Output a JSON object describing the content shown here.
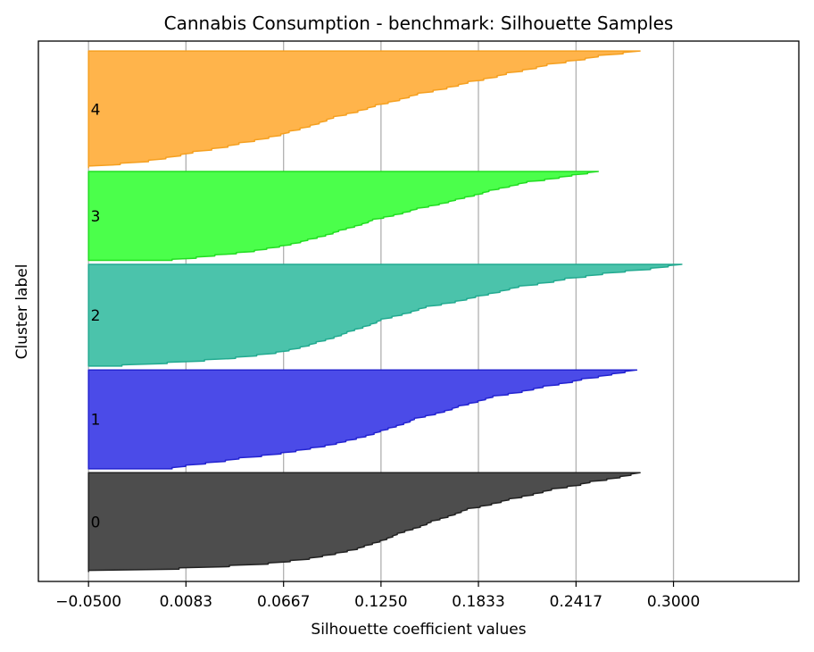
{
  "chart_data": {
    "type": "area",
    "title": "Cannabis Consumption - benchmark: Silhouette Samples",
    "xlabel": "Silhouette coefficient values",
    "ylabel": "Cluster label",
    "xlim": [
      -0.08,
      0.375
    ],
    "x_ticks": [
      "-0.0500",
      "0.0083",
      "0.0667",
      "0.1250",
      "0.1833",
      "0.2417",
      "0.3000"
    ],
    "x_tick_values": [
      -0.05,
      0.0083,
      0.0667,
      0.125,
      0.1833,
      0.2417,
      0.3
    ],
    "grid": "x-only",
    "legend": "none",
    "sample_axis_note": "each band is the sorted per-sample silhouette values of one cluster",
    "series": [
      {
        "name": "0",
        "color": "#4d4d4d",
        "edge_color": "#222222",
        "span": [
          0,
          100
        ],
        "profile": [
          [
            0,
            -0.05
          ],
          [
            3,
            0.01
          ],
          [
            8,
            0.06
          ],
          [
            15,
            0.09
          ],
          [
            25,
            0.115
          ],
          [
            38,
            0.135
          ],
          [
            50,
            0.155
          ],
          [
            62,
            0.175
          ],
          [
            72,
            0.2
          ],
          [
            82,
            0.225
          ],
          [
            90,
            0.25
          ],
          [
            96,
            0.27
          ],
          [
            100,
            0.28
          ]
        ]
      },
      {
        "name": "1",
        "color": "#4b4be8",
        "edge_color": "#2323d0",
        "span": [
          104,
          204
        ],
        "profile": [
          [
            0,
            0.0
          ],
          [
            2,
            0.005
          ],
          [
            5,
            0.02
          ],
          [
            10,
            0.04
          ],
          [
            18,
            0.075
          ],
          [
            26,
            0.1
          ],
          [
            38,
            0.125
          ],
          [
            50,
            0.145
          ],
          [
            62,
            0.17
          ],
          [
            72,
            0.19
          ],
          [
            82,
            0.22
          ],
          [
            90,
            0.245
          ],
          [
            96,
            0.265
          ],
          [
            100,
            0.278
          ]
        ]
      },
      {
        "name": "2",
        "color": "#4bc3ab",
        "edge_color": "#22aa90",
        "span": [
          208,
          311
        ],
        "profile": [
          [
            0,
            -0.03
          ],
          [
            3,
            0.0
          ],
          [
            8,
            0.04
          ],
          [
            15,
            0.07
          ],
          [
            22,
            0.085
          ],
          [
            33,
            0.105
          ],
          [
            45,
            0.125
          ],
          [
            57,
            0.15
          ],
          [
            67,
            0.18
          ],
          [
            77,
            0.205
          ],
          [
            85,
            0.235
          ],
          [
            91,
            0.26
          ],
          [
            96,
            0.29
          ],
          [
            100,
            0.305
          ]
        ]
      },
      {
        "name": "3",
        "color": "#4bff4b",
        "edge_color": "#22dd22",
        "span": [
          315,
          405
        ],
        "profile": [
          [
            0,
            0.0
          ],
          [
            4,
            0.02
          ],
          [
            12,
            0.055
          ],
          [
            22,
            0.08
          ],
          [
            33,
            0.1
          ],
          [
            45,
            0.12
          ],
          [
            57,
            0.145
          ],
          [
            68,
            0.17
          ],
          [
            78,
            0.19
          ],
          [
            87,
            0.21
          ],
          [
            94,
            0.235
          ],
          [
            100,
            0.255
          ]
        ]
      },
      {
        "name": "4",
        "color": "#ffb44b",
        "edge_color": "#f5a020",
        "span": [
          409,
          527
        ],
        "profile": [
          [
            0,
            -0.05
          ],
          [
            2,
            -0.035
          ],
          [
            6,
            -0.01
          ],
          [
            12,
            0.01
          ],
          [
            20,
            0.04
          ],
          [
            30,
            0.07
          ],
          [
            42,
            0.095
          ],
          [
            52,
            0.12
          ],
          [
            62,
            0.145
          ],
          [
            72,
            0.175
          ],
          [
            80,
            0.2
          ],
          [
            88,
            0.225
          ],
          [
            95,
            0.255
          ],
          [
            100,
            0.28
          ]
        ]
      }
    ]
  }
}
